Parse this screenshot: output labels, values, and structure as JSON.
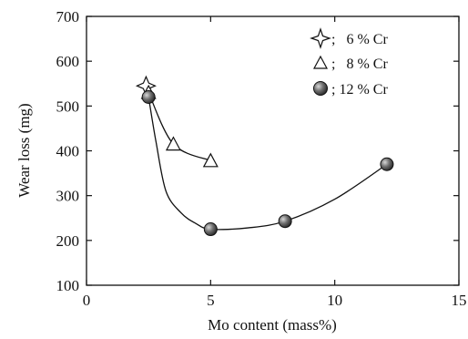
{
  "chart_data": {
    "type": "line",
    "title": "",
    "xlabel": "Mo content (mass%)",
    "ylabel": "Wear loss (mg)",
    "xlim": [
      0,
      15
    ],
    "ylim": [
      100,
      700
    ],
    "xticks": [
      0,
      5,
      10,
      15
    ],
    "yticks": [
      100,
      200,
      300,
      400,
      500,
      600,
      700
    ],
    "grid": false,
    "legend_position": "top-right",
    "series": [
      {
        "name": ";   6 % Cr",
        "marker": "star",
        "color": "#222222",
        "points": [
          [
            2.4,
            545
          ]
        ],
        "curve": []
      },
      {
        "name": ";   8 % Cr",
        "marker": "triangle",
        "color": "#222222",
        "points": [
          [
            2.5,
            530
          ],
          [
            3.5,
            415
          ],
          [
            5.0,
            378
          ]
        ],
        "curve": [
          [
            2.5,
            530
          ],
          [
            3.5,
            415
          ],
          [
            5.0,
            378
          ]
        ]
      },
      {
        "name": "; 12 % Cr",
        "marker": "sphere",
        "color": "#222222",
        "points": [
          [
            2.5,
            520
          ],
          [
            5.0,
            225
          ],
          [
            8.0,
            243
          ],
          [
            12.1,
            370
          ]
        ],
        "curve": [
          [
            2.5,
            520
          ],
          [
            2.8,
            420
          ],
          [
            3.2,
            310
          ],
          [
            3.8,
            262
          ],
          [
            4.4,
            238
          ],
          [
            5.0,
            225
          ],
          [
            6.5,
            228
          ],
          [
            8.0,
            243
          ],
          [
            10.0,
            292
          ],
          [
            12.1,
            370
          ]
        ]
      }
    ]
  }
}
